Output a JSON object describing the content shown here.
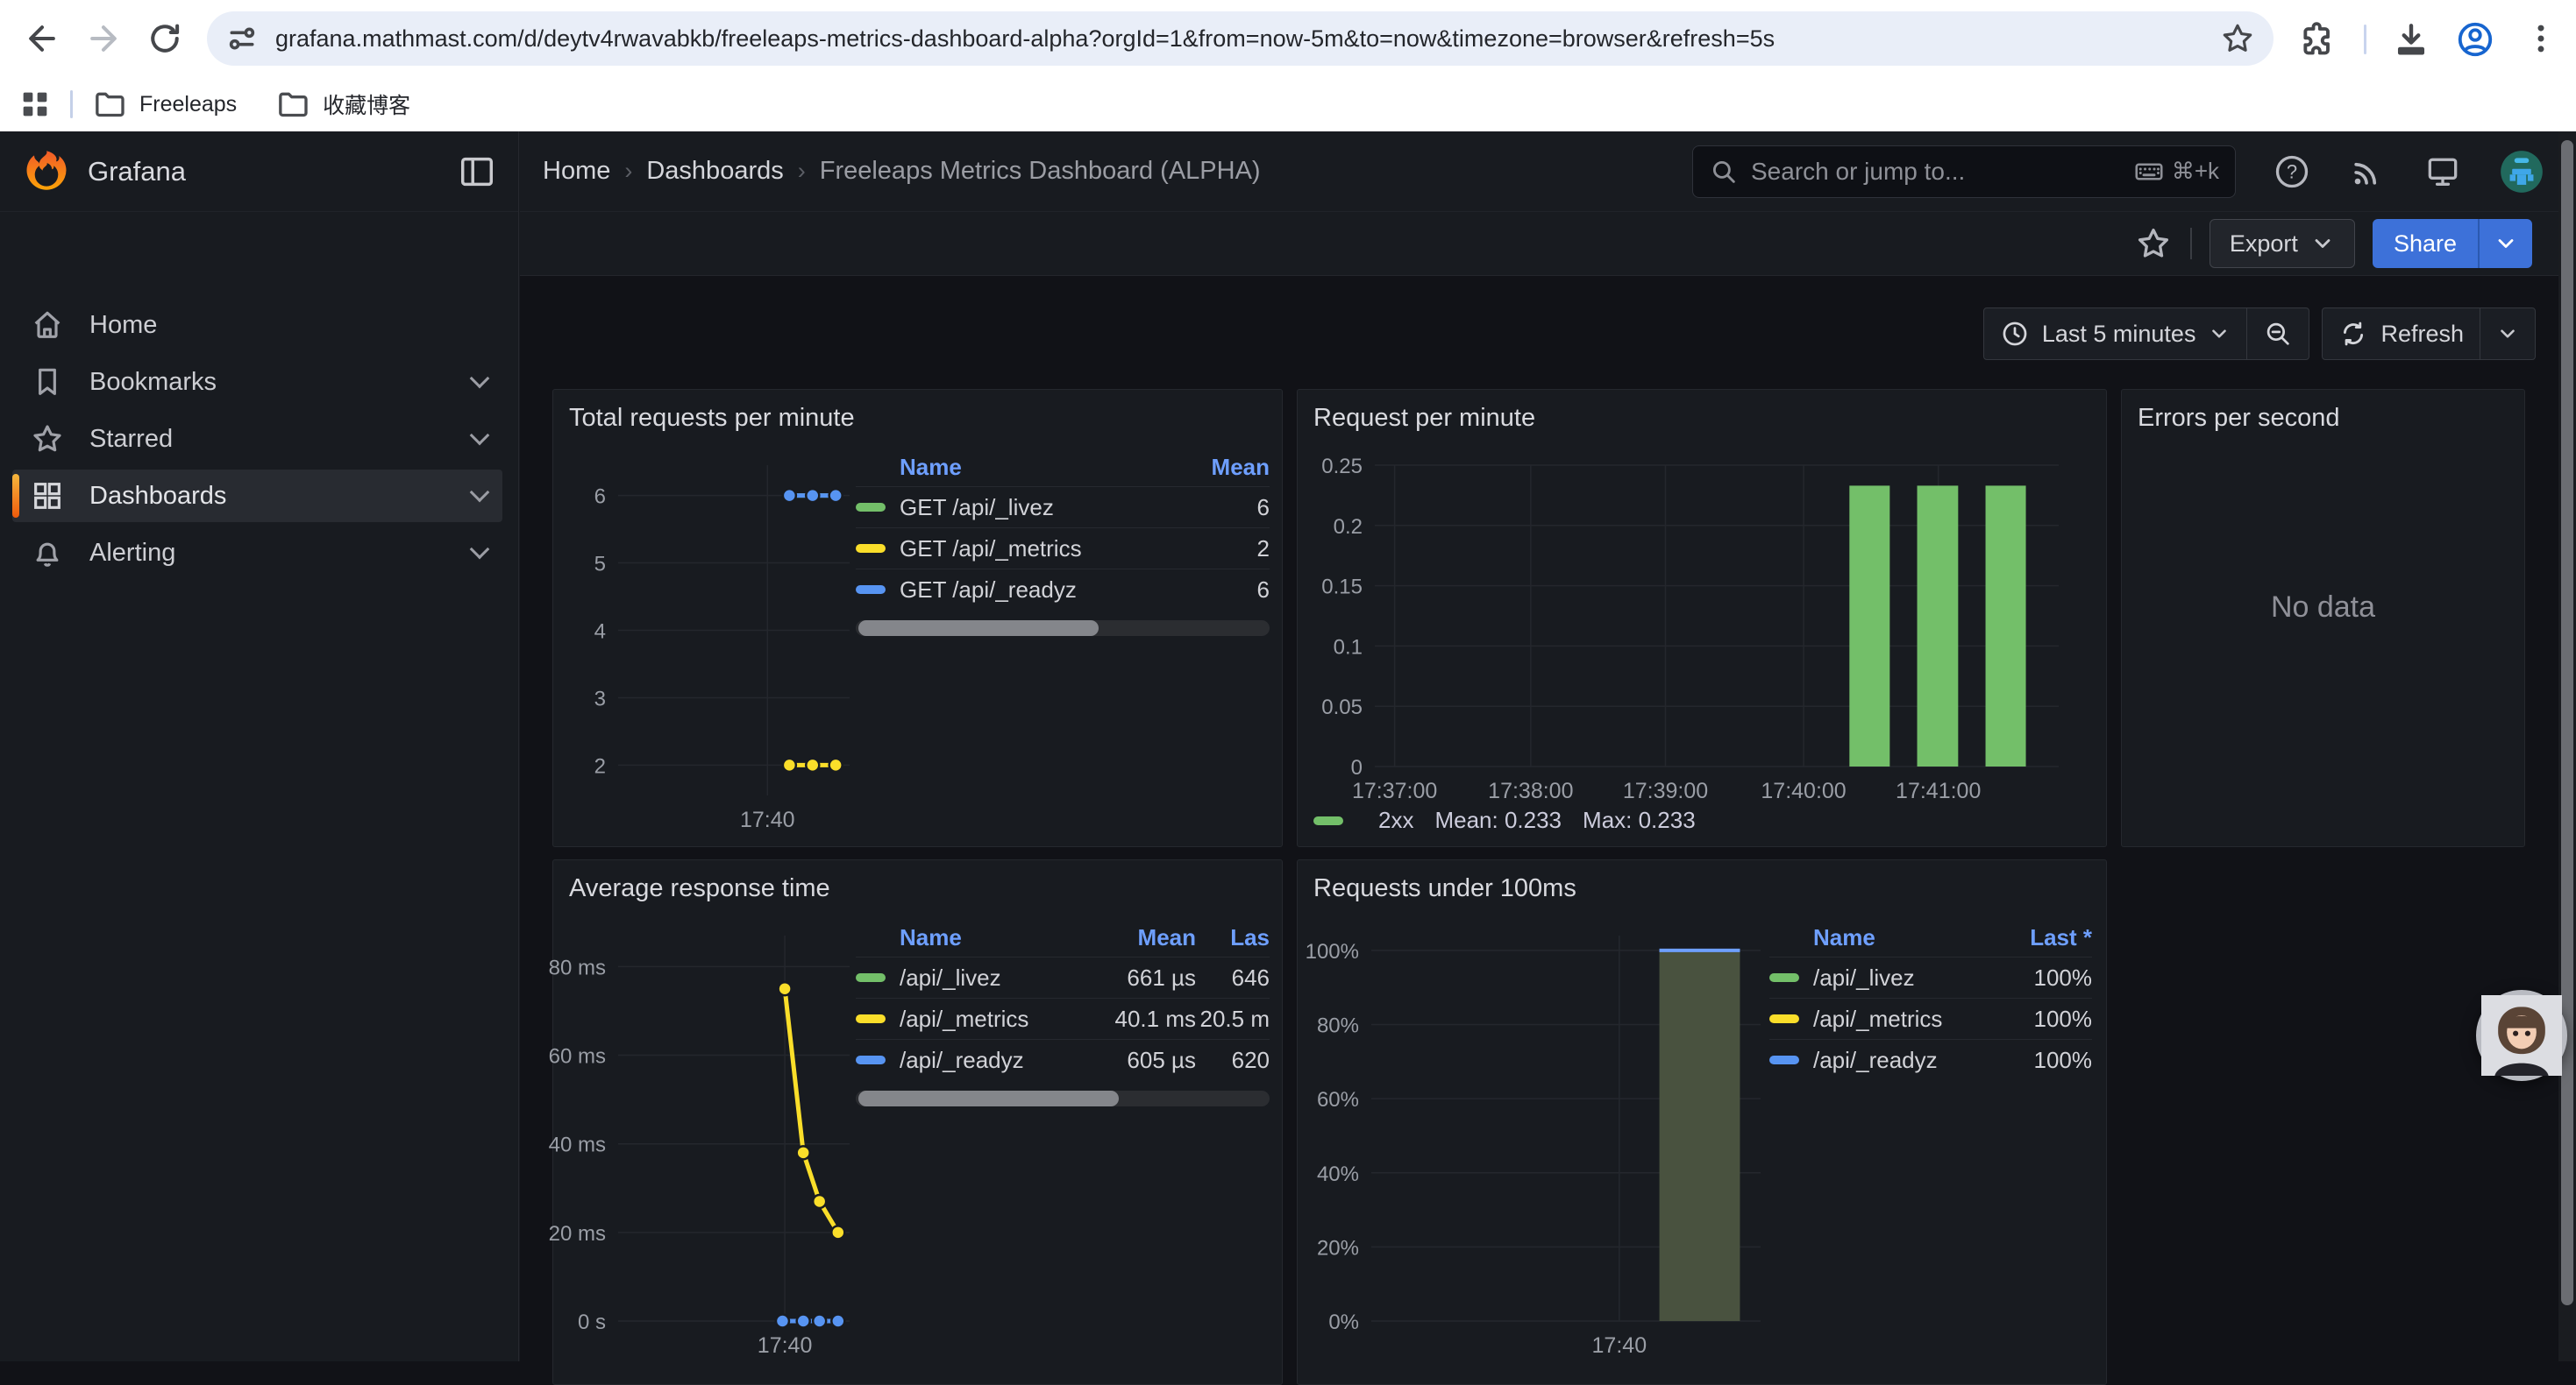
{
  "browser": {
    "url": "grafana.mathmast.com/d/deytv4rwavabkb/freeleaps-metrics-dashboard-alpha?orgId=1&from=now-5m&to=now&timezone=browser&refresh=5s",
    "bookmarks": {
      "folder1": "Freeleaps",
      "folder2": "收藏博客"
    }
  },
  "nav": {
    "brand": "Grafana",
    "breadcrumb": {
      "home": "Home",
      "section": "Dashboards",
      "page": "Freeleaps Metrics Dashboard (ALPHA)",
      "sep": "›"
    },
    "search": {
      "placeholder": "Search or jump to...",
      "shortcut": "⌘+k"
    }
  },
  "actions": {
    "export_label": "Export",
    "share_label": "Share"
  },
  "sidebar": {
    "items": [
      {
        "label": "Home",
        "expandable": false,
        "active": false
      },
      {
        "label": "Bookmarks",
        "expandable": true,
        "active": false
      },
      {
        "label": "Starred",
        "expandable": true,
        "active": false
      },
      {
        "label": "Dashboards",
        "expandable": true,
        "active": true
      },
      {
        "label": "Alerting",
        "expandable": true,
        "active": false
      }
    ]
  },
  "timebar": {
    "range_label": "Last 5 minutes",
    "refresh_label": "Refresh"
  },
  "panels": {
    "p1_title": "Total requests per minute",
    "p2_title": "Request per minute",
    "p3_title": "Errors per second",
    "p3_message": "No data",
    "p4_title": "Average response time",
    "p5_title": "Requests under 100ms"
  },
  "chart_data": [
    {
      "panel": "total-requests-per-minute",
      "type": "line",
      "title": "Total requests per minute",
      "ylim": [
        1.55,
        6.45
      ],
      "yticks": [
        6,
        5,
        4,
        3,
        2
      ],
      "gridline_frac": 0.645,
      "xtick_label": "17:40",
      "point_fracs": [
        0.74,
        0.84,
        0.94
      ],
      "series": [
        {
          "name": "GET /api/_livez",
          "color": "#73bf69",
          "mean": "6",
          "values": [
            6,
            6,
            6
          ]
        },
        {
          "name": "GET /api/_metrics",
          "color": "#fade2a",
          "mean": "2",
          "values": [
            2,
            2,
            2
          ]
        },
        {
          "name": "GET /api/_readyz",
          "color": "#5794f2",
          "mean": "6",
          "values": [
            6,
            6,
            6
          ]
        }
      ],
      "legend": {
        "headers": [
          "Name",
          "Mean"
        ],
        "cols": [
          "name",
          "mean"
        ],
        "val_widths": [
          120
        ],
        "scrollbar": 0.58
      }
    },
    {
      "panel": "request-per-minute",
      "type": "bar",
      "title": "Request per minute",
      "ylim": [
        0,
        0.25
      ],
      "yticks": [
        0.25,
        0.2,
        0.15,
        0.1,
        0.05,
        0
      ],
      "xticks": [
        {
          "label": "17:37:00",
          "f": 0.029
        },
        {
          "label": "17:38:00",
          "f": 0.228
        },
        {
          "label": "17:39:00",
          "f": 0.425
        },
        {
          "label": "17:40:00",
          "f": 0.627
        },
        {
          "label": "17:41:00",
          "f": 0.824
        }
      ],
      "color": "#73bf69",
      "bars": [
        {
          "f0": 0.694,
          "f1": 0.753,
          "v": 0.233
        },
        {
          "f0": 0.793,
          "f1": 0.853,
          "v": 0.233
        },
        {
          "f0": 0.893,
          "f1": 0.952,
          "v": 0.233
        }
      ],
      "series_name": "2xx",
      "mean_label": "Mean: 0.233",
      "max_label": "Max: 0.233"
    },
    {
      "panel": "errors-per-second",
      "type": "none",
      "title": "Errors per second",
      "message": "No data"
    },
    {
      "panel": "average-response-time",
      "type": "line",
      "title": "Average response time",
      "ylim": [
        0,
        87
      ],
      "yticks": [
        {
          "v": 80,
          "label": "80 ms"
        },
        {
          "v": 60,
          "label": "60 ms"
        },
        {
          "v": 40,
          "label": "40 ms"
        },
        {
          "v": 20,
          "label": "20 ms"
        },
        {
          "v": 0,
          "label": "0 s"
        }
      ],
      "gridline_frac": 0.72,
      "xtick_label": "17:40",
      "series": [
        {
          "name": "/api/_livez",
          "color": "#73bf69",
          "mean": "661 µs",
          "last": "646",
          "points": [
            {
              "f": 0.71,
              "v": 0
            },
            {
              "f": 0.8,
              "v": 0
            },
            {
              "f": 0.87,
              "v": 0
            },
            {
              "f": 0.95,
              "v": 0
            }
          ]
        },
        {
          "name": "/api/_metrics",
          "color": "#fade2a",
          "mean": "40.1 ms",
          "last": "20.5 m",
          "points": [
            {
              "f": 0.72,
              "v": 75
            },
            {
              "f": 0.8,
              "v": 38
            },
            {
              "f": 0.87,
              "v": 27
            },
            {
              "f": 0.95,
              "v": 20
            }
          ]
        },
        {
          "name": "/api/_readyz",
          "color": "#5794f2",
          "mean": "605 µs",
          "last": "620",
          "points": [
            {
              "f": 0.71,
              "v": 0
            },
            {
              "f": 0.8,
              "v": 0
            },
            {
              "f": 0.87,
              "v": 0
            },
            {
              "f": 0.95,
              "v": 0
            }
          ]
        }
      ],
      "legend": {
        "headers": [
          "Name",
          "Mean",
          "Las"
        ],
        "cols": [
          "name",
          "mean",
          "last"
        ],
        "val_widths": [
          150,
          84
        ],
        "scrollbar": 0.63
      }
    },
    {
      "panel": "requests-under-100ms",
      "type": "areabar",
      "title": "Requests under 100ms",
      "ylim": [
        0,
        104
      ],
      "yticks": [
        {
          "v": 100,
          "label": "100%"
        },
        {
          "v": 80,
          "label": "80%"
        },
        {
          "v": 60,
          "label": "60%"
        },
        {
          "v": 40,
          "label": "40%"
        },
        {
          "v": 20,
          "label": "20%"
        },
        {
          "v": 0,
          "label": "0%"
        }
      ],
      "gridline_frac": 0.637,
      "xtick_label": "17:40",
      "bar": {
        "f0": 0.74,
        "f1": 0.947,
        "v": 100,
        "fill": "#49523f",
        "line": "#6e9fff"
      },
      "series": [
        {
          "name": "/api/_livez",
          "color": "#73bf69",
          "last": "100%"
        },
        {
          "name": "/api/_metrics",
          "color": "#fade2a",
          "last": "100%"
        },
        {
          "name": "/api/_readyz",
          "color": "#5794f2",
          "last": "100%"
        }
      ],
      "legend": {
        "headers": [
          "Name",
          "Last *"
        ],
        "cols": [
          "name",
          "last"
        ],
        "val_widths": [
          110
        ]
      }
    }
  ]
}
